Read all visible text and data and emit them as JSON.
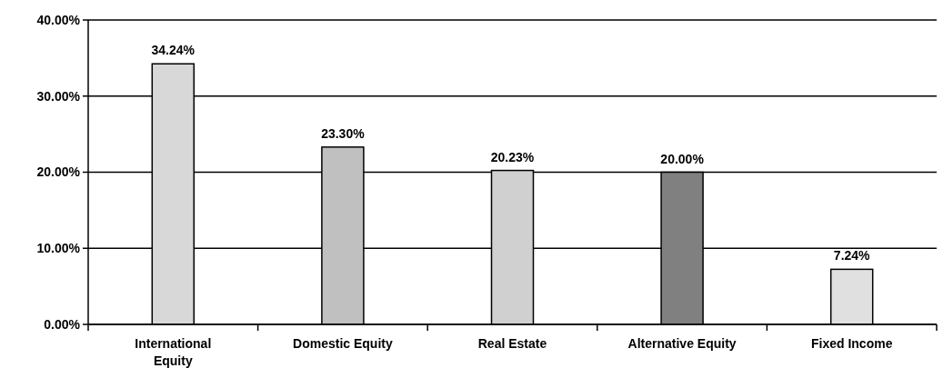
{
  "chart_data": {
    "type": "bar",
    "categories": [
      "International Equity",
      "Domestic Equity",
      "Real Estate",
      "Alternative Equity",
      "Fixed Income"
    ],
    "values": [
      34.24,
      23.3,
      20.23,
      20.0,
      7.24
    ],
    "colors": [
      "#d8d8d8",
      "#c0c0c0",
      "#d0d0d0",
      "#808080",
      "#e0e0e0"
    ],
    "value_labels": [
      "34.24%",
      "23.30%",
      "20.23%",
      "20.00%",
      "7.24%"
    ],
    "ylim": [
      0,
      40
    ],
    "yticks": [
      {
        "value": 0,
        "label": "0.00%"
      },
      {
        "value": 10,
        "label": "10.00%"
      },
      {
        "value": 20,
        "label": "20.00%"
      },
      {
        "value": 30,
        "label": "30.00%"
      },
      {
        "value": 40,
        "label": "40.00%"
      }
    ],
    "grid": "y"
  }
}
